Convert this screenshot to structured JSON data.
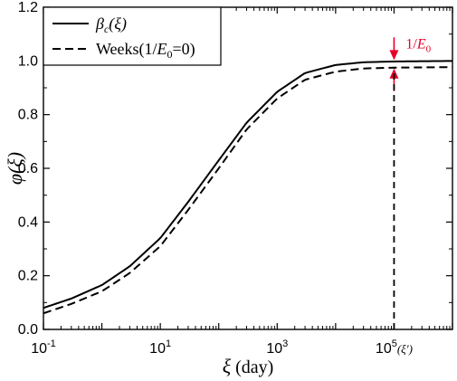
{
  "chart_data": {
    "type": "line",
    "xscale": "log",
    "xlim": [
      0.1,
      1000000
    ],
    "ylim": [
      0.0,
      1.2
    ],
    "xticks": [
      {
        "value": 0.1,
        "base": "10",
        "exp": "-1",
        "suffix": ""
      },
      {
        "value": 10,
        "base": "10",
        "exp": "1",
        "suffix": ""
      },
      {
        "value": 1000,
        "base": "10",
        "exp": "3",
        "suffix": ""
      },
      {
        "value": 100000,
        "base": "10",
        "exp": "5",
        "suffix": "(ξ′)"
      }
    ],
    "yticks": [
      {
        "value": 0.0,
        "label": "0.0"
      },
      {
        "value": 0.2,
        "label": "0.2"
      },
      {
        "value": 0.4,
        "label": "0.4"
      },
      {
        "value": 0.6,
        "label": "0.6"
      },
      {
        "value": 0.8,
        "label": "0.8"
      },
      {
        "value": 1.0,
        "label": "1.0"
      },
      {
        "value": 1.2,
        "label": "1.2"
      }
    ],
    "xlabel": {
      "symbol": "ξ",
      "unit": "(day)"
    },
    "ylabel": {
      "symbol": "φ(ξ)"
    },
    "legend_position": "top-left",
    "series": [
      {
        "name": {
          "main": "β",
          "sub": "c",
          "rest": "(ξ)"
        },
        "style": "solid",
        "color": "#000000",
        "x": [
          0.1,
          0.3,
          1,
          3,
          10,
          30,
          100,
          300,
          1000,
          3000,
          10000,
          30000,
          100000,
          1000000
        ],
        "y": [
          0.08,
          0.115,
          0.165,
          0.235,
          0.34,
          0.475,
          0.63,
          0.77,
          0.885,
          0.955,
          0.985,
          0.995,
          0.998,
          1.0
        ]
      },
      {
        "name": {
          "main": "Weeks(1/",
          "italic": "E",
          "sub": "0",
          "rest": "=0)"
        },
        "style": "dashed",
        "color": "#000000",
        "x": [
          0.1,
          0.3,
          1,
          3,
          10,
          30,
          100,
          300,
          1000,
          3000,
          10000,
          30000,
          100000,
          1000000
        ],
        "y": [
          0.06,
          0.095,
          0.142,
          0.21,
          0.31,
          0.445,
          0.6,
          0.745,
          0.86,
          0.93,
          0.96,
          0.972,
          0.975,
          0.977
        ]
      }
    ],
    "annotations": [
      {
        "type": "gap-arrows",
        "x": 100000,
        "y_top": 1.0,
        "y_bottom": 0.975,
        "color": "#e8002a",
        "label": {
          "pre": "1/",
          "italic": "E",
          "sub": "0"
        }
      },
      {
        "type": "vertical-dashed",
        "x": 100000,
        "y_from": 0.0,
        "y_to": 0.975,
        "color": "#000000"
      }
    ]
  }
}
